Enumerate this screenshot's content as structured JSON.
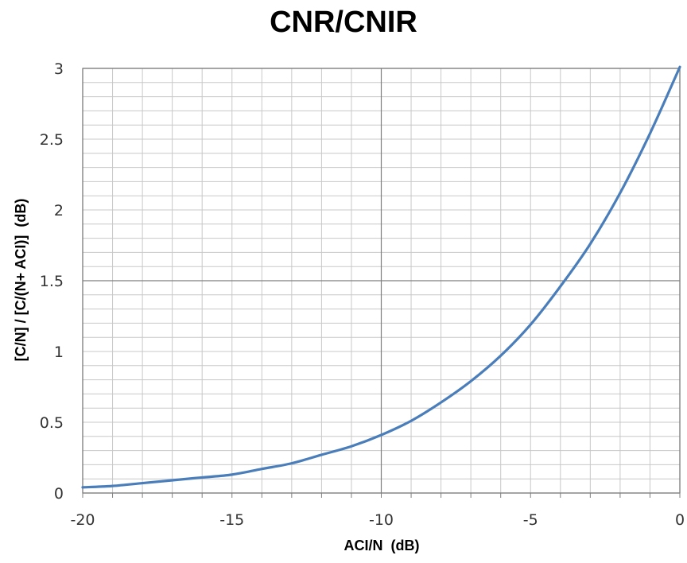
{
  "chart_data": {
    "type": "line",
    "title": "CNR/CNIR",
    "xlabel": "ACI/N  (dB)",
    "ylabel": "[C/N] / [C/(N+ ACI)]  (dB)",
    "xlim": [
      -20,
      0
    ],
    "ylim": [
      0,
      3
    ],
    "x_ticks": [
      "-20",
      "-15",
      "-10",
      "-5",
      "0"
    ],
    "y_ticks": [
      "0",
      "0.5",
      "1",
      "1.5",
      "2",
      "2.5",
      "3"
    ],
    "grid": true,
    "legend": "none",
    "series": [
      {
        "color": "#4a7ebb",
        "x": [
          -20,
          -19,
          -18,
          -17,
          -16,
          -15,
          -14,
          -13,
          -12,
          -11,
          -10,
          -9,
          -8,
          -7,
          -6,
          -5,
          -4,
          -3,
          -2,
          -1,
          0
        ],
        "y": [
          0.04,
          0.05,
          0.07,
          0.09,
          0.11,
          0.13,
          0.17,
          0.21,
          0.27,
          0.33,
          0.41,
          0.51,
          0.64,
          0.79,
          0.97,
          1.19,
          1.46,
          1.76,
          2.12,
          2.54,
          3.01
        ]
      }
    ]
  }
}
